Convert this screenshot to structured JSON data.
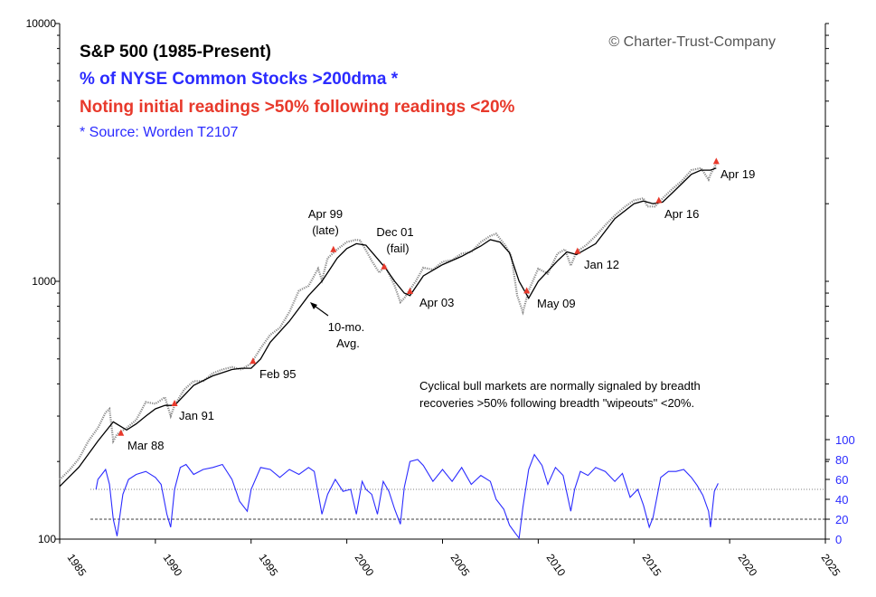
{
  "colors": {
    "title": "#000000",
    "breadth": "#2b2bff",
    "highlight": "#e8392b",
    "axis": "#000000",
    "price": "#555555"
  },
  "chart_data": {
    "type": "line",
    "title": "S&P 500 (1985-Present)",
    "subtitle_blue": "% of NYSE Common Stocks >200dma *",
    "subtitle_red": "Noting initial readings >50% following readings <20%",
    "source": "* Source: Worden T2107",
    "copyright": "© Charter-Trust-Company",
    "note_lines": [
      "Cyclical bull markets are normally signaled by breadth",
      "recoveries >50% following breadth \"wipeouts\" <20%."
    ],
    "x_range": [
      1985,
      2025
    ],
    "x_ticks": [
      "1985",
      "1990",
      "1995",
      "2000",
      "2005",
      "2010",
      "2015",
      "2020",
      "2025"
    ],
    "y_scale": "log",
    "y_range": [
      100,
      10000
    ],
    "y_ticks": [
      "10000",
      "1000",
      "100"
    ],
    "y2_range": [
      0,
      100
    ],
    "y2_ticks": [
      "100",
      "80",
      "60",
      "40",
      "20",
      "0"
    ],
    "reference_levels": {
      "upper": 50,
      "lower": 20
    },
    "series": [
      {
        "name": "S&P 500",
        "x": [
          1985.0,
          1985.5,
          1986.0,
          1986.5,
          1987.0,
          1987.4,
          1987.6,
          1987.8,
          1988.0,
          1988.5,
          1989.0,
          1989.5,
          1990.0,
          1990.5,
          1990.8,
          1991.0,
          1991.5,
          1992.0,
          1992.5,
          1993.0,
          1993.5,
          1994.0,
          1994.5,
          1995.0,
          1995.5,
          1996.0,
          1996.5,
          1997.0,
          1997.5,
          1998.0,
          1998.5,
          1998.7,
          1999.0,
          1999.5,
          2000.0,
          2000.5,
          2000.7,
          2001.0,
          2001.3,
          2001.7,
          2002.0,
          2002.5,
          2002.8,
          2003.0,
          2003.3,
          2003.6,
          2004.0,
          2004.5,
          2005.0,
          2005.5,
          2006.0,
          2006.5,
          2007.0,
          2007.5,
          2007.8,
          2008.3,
          2008.6,
          2008.9,
          2009.2,
          2009.5,
          2010.0,
          2010.5,
          2011.0,
          2011.4,
          2011.7,
          2012.0,
          2012.5,
          2013.0,
          2013.5,
          2014.0,
          2014.5,
          2015.0,
          2015.5,
          2015.7,
          2016.1,
          2016.5,
          2017.0,
          2017.5,
          2018.0,
          2018.5,
          2018.9,
          2019.0,
          2019.3
        ],
        "values": [
          170,
          185,
          205,
          240,
          270,
          310,
          320,
          240,
          255,
          270,
          290,
          340,
          335,
          355,
          300,
          330,
          380,
          410,
          410,
          440,
          455,
          465,
          455,
          480,
          550,
          620,
          660,
          760,
          920,
          960,
          1120,
          1010,
          1230,
          1330,
          1420,
          1450,
          1440,
          1320,
          1200,
          1080,
          1150,
          960,
          830,
          860,
          930,
          1000,
          1130,
          1110,
          1190,
          1210,
          1280,
          1300,
          1420,
          1500,
          1530,
          1370,
          1250,
          880,
          760,
          920,
          1120,
          1070,
          1280,
          1330,
          1150,
          1300,
          1380,
          1500,
          1650,
          1800,
          1940,
          2060,
          2100,
          1950,
          1950,
          2100,
          2280,
          2450,
          2700,
          2750,
          2480,
          2600,
          2850
        ]
      },
      {
        "name": "10-mo. Avg.",
        "x": [
          1985.0,
          1986.0,
          1987.0,
          1987.8,
          1988.5,
          1989.0,
          1989.5,
          1990.0,
          1990.5,
          1991.0,
          1992.0,
          1993.0,
          1994.0,
          1994.5,
          1995.0,
          1995.5,
          1996.0,
          1997.0,
          1998.0,
          1998.7,
          1999.0,
          1999.5,
          2000.0,
          2000.5,
          2001.0,
          2001.5,
          2002.0,
          2002.5,
          2003.0,
          2003.3,
          2004.0,
          2005.0,
          2006.0,
          2007.0,
          2007.5,
          2008.0,
          2008.5,
          2009.0,
          2009.5,
          2010.0,
          2011.0,
          2011.5,
          2012.0,
          2013.0,
          2014.0,
          2015.0,
          2015.5,
          2016.0,
          2016.5,
          2017.0,
          2018.0,
          2018.5,
          2019.0,
          2019.3
        ],
        "values": [
          160,
          190,
          240,
          285,
          265,
          280,
          300,
          320,
          330,
          330,
          395,
          430,
          455,
          460,
          460,
          500,
          580,
          700,
          880,
          1000,
          1080,
          1230,
          1340,
          1400,
          1380,
          1250,
          1130,
          1000,
          900,
          880,
          1050,
          1160,
          1250,
          1370,
          1450,
          1420,
          1290,
          1000,
          860,
          1000,
          1200,
          1300,
          1270,
          1400,
          1750,
          2000,
          2050,
          2000,
          2030,
          2200,
          2600,
          2700,
          2700,
          2750
        ]
      },
      {
        "name": "% of NYSE Common Stocks >200dma",
        "axis": "right",
        "x": [
          1986.9,
          1987.0,
          1987.2,
          1987.4,
          1987.6,
          1987.8,
          1988.0,
          1988.3,
          1988.6,
          1989.0,
          1989.5,
          1990.0,
          1990.3,
          1990.6,
          1990.8,
          1991.0,
          1991.3,
          1991.6,
          1992.0,
          1992.5,
          1993.0,
          1993.5,
          1994.0,
          1994.4,
          1994.8,
          1995.0,
          1995.5,
          1996.0,
          1996.5,
          1997.0,
          1997.5,
          1998.0,
          1998.3,
          1998.7,
          1999.0,
          1999.4,
          1999.8,
          2000.2,
          2000.5,
          2000.8,
          2001.0,
          2001.3,
          2001.6,
          2001.9,
          2002.2,
          2002.5,
          2002.8,
          2003.0,
          2003.3,
          2003.7,
          2004.0,
          2004.5,
          2005.0,
          2005.5,
          2006.0,
          2006.5,
          2007.0,
          2007.5,
          2007.8,
          2008.2,
          2008.5,
          2008.8,
          2009.0,
          2009.2,
          2009.5,
          2009.8,
          2010.2,
          2010.5,
          2010.9,
          2011.3,
          2011.7,
          2011.9,
          2012.2,
          2012.6,
          2013.0,
          2013.5,
          2014.0,
          2014.4,
          2014.8,
          2015.2,
          2015.5,
          2015.8,
          2016.0,
          2016.4,
          2016.8,
          2017.2,
          2017.6,
          2018.0,
          2018.3,
          2018.6,
          2018.9,
          2019.0,
          2019.2,
          2019.4
        ],
        "values": [
          50,
          60,
          65,
          70,
          55,
          20,
          3,
          45,
          60,
          65,
          68,
          62,
          55,
          25,
          12,
          50,
          72,
          75,
          65,
          70,
          72,
          75,
          60,
          38,
          28,
          50,
          72,
          70,
          62,
          70,
          65,
          72,
          68,
          25,
          45,
          60,
          48,
          50,
          25,
          58,
          50,
          45,
          25,
          58,
          48,
          30,
          15,
          52,
          78,
          80,
          74,
          58,
          70,
          58,
          72,
          55,
          64,
          58,
          40,
          30,
          14,
          6,
          1,
          32,
          70,
          85,
          74,
          55,
          72,
          64,
          28,
          50,
          68,
          64,
          72,
          68,
          58,
          66,
          42,
          50,
          34,
          12,
          22,
          62,
          68,
          68,
          70,
          62,
          54,
          44,
          28,
          12,
          48,
          56
        ]
      }
    ],
    "annotations": [
      {
        "label": "Mar 88",
        "x": 1988.2,
        "value": 258
      },
      {
        "label": "Jan 91",
        "x": 1991.0,
        "value": 336
      },
      {
        "label": "Feb 95",
        "x": 1995.1,
        "value": 490
      },
      {
        "label": "Apr 99",
        "label2": "(late)",
        "x": 1999.3,
        "value": 1330
      },
      {
        "label": "Dec 01",
        "label2": "(fail)",
        "x": 2001.95,
        "value": 1140
      },
      {
        "label": "Apr 03",
        "x": 2003.3,
        "value": 915
      },
      {
        "label": "May 09",
        "x": 2009.4,
        "value": 920
      },
      {
        "label": "Jan 12",
        "x": 2012.05,
        "value": 1310
      },
      {
        "label": "Apr 16",
        "x": 2016.3,
        "value": 2060
      },
      {
        "label": "Apr 19",
        "x": 2019.3,
        "value": 2920
      }
    ],
    "ma_label": [
      "10-mo.",
      "Avg."
    ]
  }
}
